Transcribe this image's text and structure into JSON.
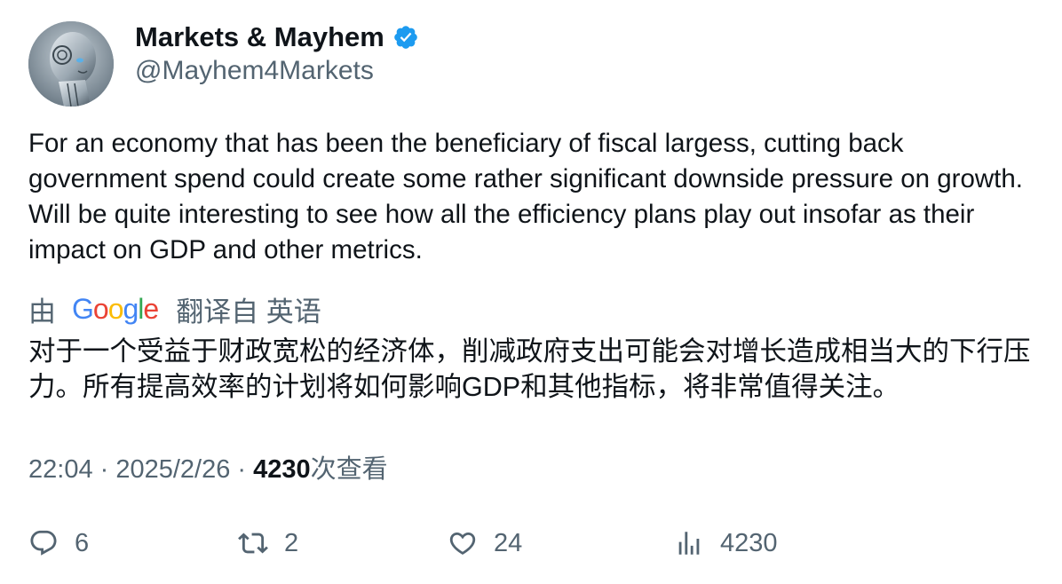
{
  "author": {
    "display_name": "Markets & Mayhem",
    "handle": "@Mayhem4Markets",
    "verified": true,
    "verified_color": "#1d9bf0"
  },
  "tweet": {
    "text": "For an economy that has been the beneficiary of fiscal largess, cutting back government spend could create some rather significant downside pressure on growth. Will be quite interesting to see how all the efficiency plans play out insofar as their impact on GDP and other metrics."
  },
  "translation": {
    "by_label": "由",
    "provider": "Google",
    "from_label": "翻译自 英语",
    "text": "对于一个受益于财政宽松的经济体，削减政府支出可能会对增长造成相当大的下行压力。所有提高效率的计划将如何影响GDP和其他指标，将非常值得关注。"
  },
  "meta": {
    "time": "22:04",
    "separator": " · ",
    "date": "2025/2/26",
    "views_count": "4230",
    "views_label": "次查看"
  },
  "actions": {
    "replies": "6",
    "retweets": "2",
    "likes": "24",
    "views": "4230"
  }
}
